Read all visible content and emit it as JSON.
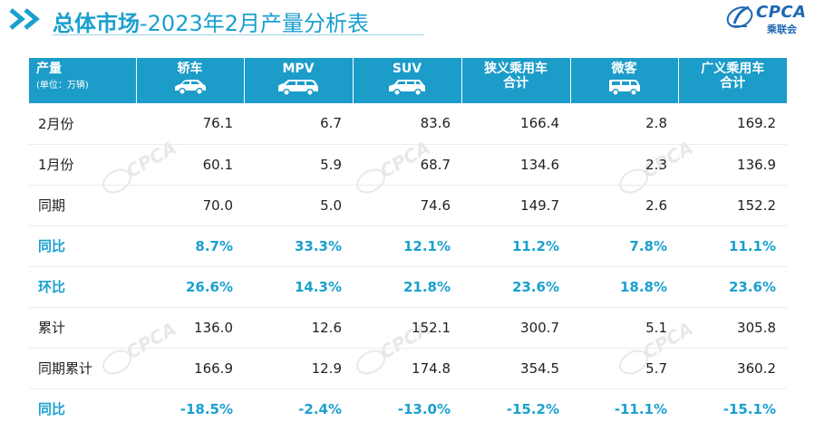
{
  "header": {
    "title_bold": "总体市场",
    "title_rest": "-2023年2月产量分析表"
  },
  "logo": {
    "text": "CPCA",
    "subtext": "乘联会"
  },
  "table": {
    "first_col_header": "产量",
    "first_col_unit": "(单位：万辆)",
    "columns": [
      {
        "label": "轿车",
        "icon": "sedan-car-icon"
      },
      {
        "label": "MPV",
        "icon": "mpv-car-icon"
      },
      {
        "label": "SUV",
        "icon": "suv-car-icon"
      },
      {
        "label": "狭义乘用车\n合计",
        "icon": ""
      },
      {
        "label": "微客",
        "icon": "minivan-icon"
      },
      {
        "label": "广义乘用车\n合计",
        "icon": ""
      }
    ],
    "rows": [
      {
        "label": "2月份",
        "values": [
          "76.1",
          "6.7",
          "83.6",
          "166.4",
          "2.8",
          "169.2"
        ],
        "highlight": false
      },
      {
        "label": "1月份",
        "values": [
          "60.1",
          "5.9",
          "68.7",
          "134.6",
          "2.3",
          "136.9"
        ],
        "highlight": false
      },
      {
        "label": "同期",
        "values": [
          "70.0",
          "5.0",
          "74.6",
          "149.7",
          "2.6",
          "152.2"
        ],
        "highlight": false
      },
      {
        "label": "同比",
        "values": [
          "8.7%",
          "33.3%",
          "12.1%",
          "11.2%",
          "7.8%",
          "11.1%"
        ],
        "highlight": true
      },
      {
        "label": "环比",
        "values": [
          "26.6%",
          "14.3%",
          "21.8%",
          "23.6%",
          "18.8%",
          "23.6%"
        ],
        "highlight": true
      },
      {
        "label": "累计",
        "values": [
          "136.0",
          "12.6",
          "152.1",
          "300.7",
          "5.1",
          "305.8"
        ],
        "highlight": false
      },
      {
        "label": "同期累计",
        "values": [
          "166.9",
          "12.9",
          "174.8",
          "354.5",
          "5.7",
          "360.2"
        ],
        "highlight": false
      },
      {
        "label": "同比",
        "values": [
          "-18.5%",
          "-2.4%",
          "-13.0%",
          "-15.2%",
          "-11.1%",
          "-15.1%"
        ],
        "highlight": true
      }
    ]
  },
  "colors": {
    "accent": "#1aa0cf",
    "header_bg": "#1b9cc9",
    "logo_blue": "#1f68b4"
  }
}
